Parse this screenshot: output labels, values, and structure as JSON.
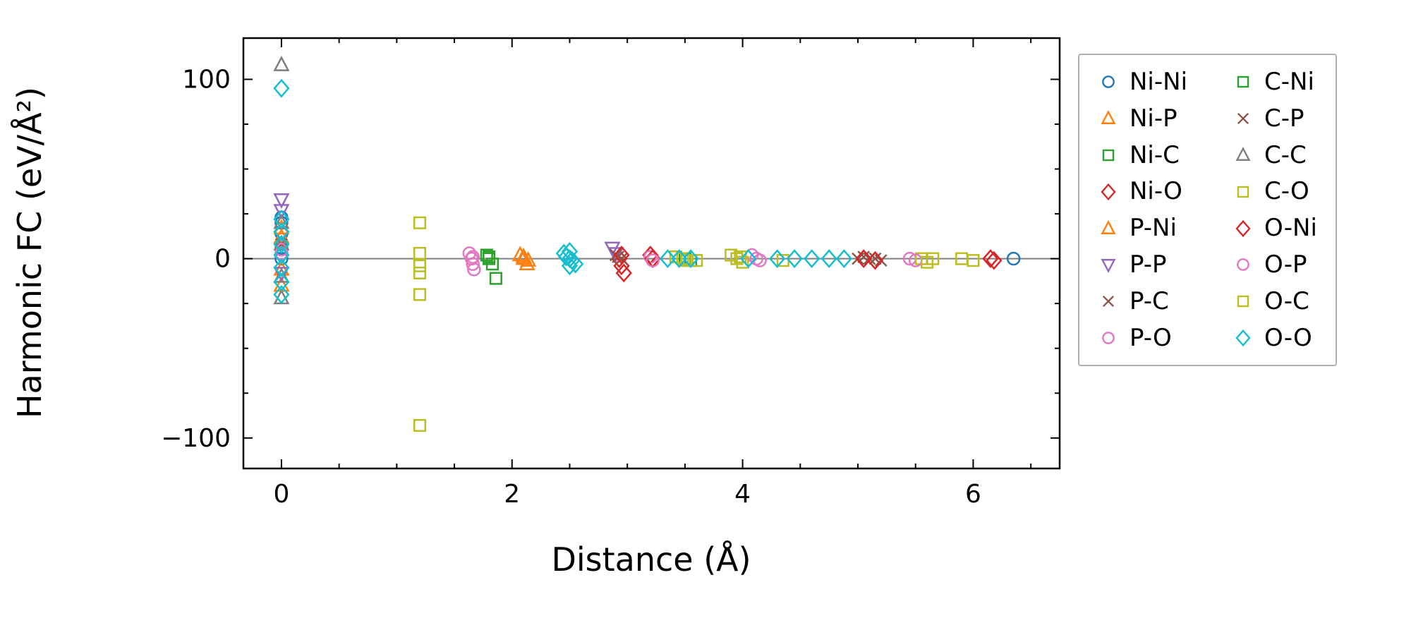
{
  "chart_data": {
    "type": "scatter",
    "title": "",
    "xlabel": "Distance (Å)",
    "ylabel": "Harmonic FC (eV/Å²)",
    "xlim": [
      -0.33,
      6.75
    ],
    "ylim": [
      -117,
      123
    ],
    "xticks": [
      0,
      2,
      4,
      6
    ],
    "yticks": [
      -100,
      0,
      100
    ],
    "x_minor_step": 0.5,
    "y_minor_step": 25,
    "grid": false,
    "zero_line": true,
    "zero_line_color": "#808080",
    "axis_color": "#000000",
    "legend_position": "outside-right",
    "legend_columns": 2,
    "series": [
      {
        "name": "Ni-Ni",
        "marker": "circle",
        "color": "#1f77b4",
        "points": [
          [
            0,
            23
          ],
          [
            0,
            20
          ],
          [
            0,
            14
          ],
          [
            0,
            6
          ],
          [
            0,
            0
          ],
          [
            6.35,
            0
          ]
        ]
      },
      {
        "name": "Ni-P",
        "marker": "triangle-up",
        "color": "#ff7f0e",
        "points": [
          [
            0,
            17
          ],
          [
            0,
            -15
          ],
          [
            2.07,
            2
          ],
          [
            2.1,
            0
          ],
          [
            2.13,
            -3
          ]
        ]
      },
      {
        "name": "Ni-C",
        "marker": "square",
        "color": "#2ca02c",
        "points": [
          [
            1.78,
            2
          ],
          [
            1.8,
            0
          ],
          [
            1.83,
            -3
          ],
          [
            1.86,
            -11
          ],
          [
            3.5,
            0
          ]
        ]
      },
      {
        "name": "Ni-O",
        "marker": "diamond",
        "color": "#d62728",
        "points": [
          [
            2.93,
            0
          ],
          [
            2.95,
            -4
          ],
          [
            2.97,
            -8
          ],
          [
            3.2,
            2
          ],
          [
            6.15,
            0
          ]
        ]
      },
      {
        "name": "P-Ni",
        "marker": "triangle-up",
        "color": "#ff7f0e",
        "points": [
          [
            0,
            12
          ],
          [
            0,
            -6
          ],
          [
            2.1,
            1
          ],
          [
            2.14,
            -1
          ]
        ]
      },
      {
        "name": "P-P",
        "marker": "triangle-down",
        "color": "#9467bd",
        "points": [
          [
            0,
            33
          ],
          [
            0,
            27
          ],
          [
            0,
            -8
          ],
          [
            2.87,
            6
          ],
          [
            2.9,
            3
          ]
        ]
      },
      {
        "name": "P-C",
        "marker": "x",
        "color": "#8c564b",
        "points": [
          [
            0,
            8
          ],
          [
            2.9,
            2
          ],
          [
            2.95,
            0
          ],
          [
            5.0,
            0
          ],
          [
            5.1,
            0
          ],
          [
            5.2,
            -1
          ]
        ]
      },
      {
        "name": "P-O",
        "marker": "circle",
        "color": "#e377c2",
        "points": [
          [
            0,
            5
          ],
          [
            1.63,
            3
          ],
          [
            1.65,
            0
          ],
          [
            1.66,
            -3
          ],
          [
            1.67,
            -6
          ],
          [
            3.2,
            1
          ],
          [
            4.08,
            2
          ],
          [
            4.12,
            0
          ],
          [
            5.45,
            0
          ]
        ]
      },
      {
        "name": "C-Ni",
        "marker": "square",
        "color": "#2ca02c",
        "points": [
          [
            1.8,
            1
          ],
          [
            3.55,
            -1
          ]
        ]
      },
      {
        "name": "C-P",
        "marker": "x",
        "color": "#8c564b",
        "points": [
          [
            2.92,
            1
          ],
          [
            5.05,
            1
          ],
          [
            5.15,
            0
          ]
        ]
      },
      {
        "name": "C-C",
        "marker": "triangle-up",
        "color": "#7f7f7f",
        "points": [
          [
            0,
            108
          ],
          [
            0,
            20
          ],
          [
            0,
            8
          ],
          [
            0,
            -10
          ],
          [
            0,
            -22
          ]
        ]
      },
      {
        "name": "C-O",
        "marker": "square",
        "color": "#bcbd22",
        "points": [
          [
            1.2,
            20
          ],
          [
            1.2,
            3
          ],
          [
            1.2,
            -4
          ],
          [
            1.2,
            -8
          ],
          [
            1.2,
            -20
          ],
          [
            1.2,
            -93
          ],
          [
            3.42,
            1
          ],
          [
            3.52,
            -1
          ],
          [
            3.9,
            2
          ],
          [
            3.95,
            0
          ],
          [
            4.0,
            -2
          ],
          [
            5.55,
            0
          ],
          [
            5.9,
            0
          ]
        ]
      },
      {
        "name": "O-Ni",
        "marker": "diamond",
        "color": "#d62728",
        "points": [
          [
            2.95,
            2
          ],
          [
            3.22,
            0
          ],
          [
            5.05,
            0
          ],
          [
            5.15,
            -1
          ],
          [
            6.18,
            -1
          ]
        ]
      },
      {
        "name": "O-P",
        "marker": "circle",
        "color": "#e377c2",
        "points": [
          [
            0,
            3
          ],
          [
            1.66,
            1
          ],
          [
            3.22,
            -1
          ],
          [
            4.15,
            -1
          ],
          [
            5.5,
            -1
          ]
        ]
      },
      {
        "name": "O-C",
        "marker": "square",
        "color": "#bcbd22",
        "points": [
          [
            3.48,
            0
          ],
          [
            3.6,
            -1
          ],
          [
            3.98,
            1
          ],
          [
            4.35,
            -1
          ],
          [
            5.6,
            -2
          ],
          [
            5.65,
            0
          ],
          [
            6.0,
            -1
          ]
        ]
      },
      {
        "name": "O-O",
        "marker": "diamond",
        "color": "#17becf",
        "points": [
          [
            0,
            95
          ],
          [
            0,
            22
          ],
          [
            0,
            15
          ],
          [
            0,
            8
          ],
          [
            0,
            2
          ],
          [
            0,
            -5
          ],
          [
            0,
            -13
          ],
          [
            0,
            -20
          ],
          [
            2.45,
            3
          ],
          [
            2.47,
            1
          ],
          [
            2.5,
            4
          ],
          [
            2.5,
            0
          ],
          [
            2.5,
            -4
          ],
          [
            2.52,
            -1
          ],
          [
            2.55,
            -3
          ],
          [
            3.35,
            0
          ],
          [
            3.45,
            0
          ],
          [
            3.55,
            0
          ],
          [
            4.05,
            0
          ],
          [
            4.3,
            0
          ],
          [
            4.45,
            0
          ],
          [
            4.6,
            0
          ],
          [
            4.75,
            0
          ],
          [
            4.88,
            0
          ]
        ]
      }
    ]
  }
}
